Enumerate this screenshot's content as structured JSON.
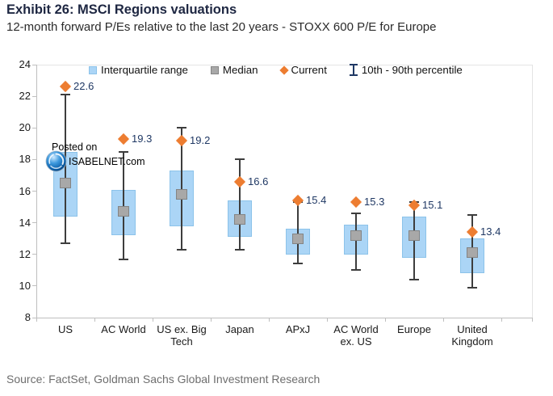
{
  "header": {
    "title": "Exhibit 26: MSCI Regions valuations",
    "subtitle": "12-month forward P/Es relative to the last 20 years - STOXX 600 P/E for Europe"
  },
  "footer": {
    "source": "Source: FactSet, Goldman Sachs Global Investment Research"
  },
  "watermark": {
    "line1": "Posted on",
    "line2": "ISABELNET.com",
    "logo_icon": "isabelnet-sphere-logo"
  },
  "chart_data": {
    "type": "boxplot",
    "title": "MSCI Regions valuations",
    "ylabel": "12-month forward P/E",
    "y_axis": {
      "min": 8,
      "max": 24,
      "step": 2,
      "ticks": [
        24,
        22,
        20,
        18,
        16,
        14,
        12,
        10,
        8
      ]
    },
    "grid": "top-line-only",
    "legend_position": "top",
    "legend": [
      {
        "label": "Interquartile range",
        "marker": "square",
        "color": "#abd5f6"
      },
      {
        "label": "Median",
        "marker": "square",
        "color": "#a8a8a8"
      },
      {
        "label": "Current",
        "marker": "diamond",
        "color": "#ed7d31"
      },
      {
        "label": "10th - 90th percentile",
        "marker": "error-bar",
        "color": "#1f3864"
      }
    ],
    "categories": [
      "US",
      "AC World",
      "US ex. Big Tech",
      "Japan",
      "APxJ",
      "AC World ex. US",
      "Europe",
      "United Kingdom"
    ],
    "series": [
      {
        "category": "US",
        "current": 22.6,
        "current_label": "22.6",
        "p90": 22.1,
        "q3": 18.5,
        "median": 16.5,
        "q1": 14.4,
        "p10": 12.7
      },
      {
        "category": "AC World",
        "current": 19.3,
        "current_label": "19.3",
        "p90": 18.5,
        "q3": 16.1,
        "median": 14.7,
        "q1": 13.2,
        "p10": 11.7
      },
      {
        "category": "US ex. Big Tech",
        "current": 19.2,
        "current_label": "19.2",
        "p90": 20.0,
        "q3": 17.3,
        "median": 15.8,
        "q1": 13.8,
        "p10": 12.3
      },
      {
        "category": "Japan",
        "current": 16.6,
        "current_label": "16.6",
        "p90": 18.0,
        "q3": 15.4,
        "median": 14.2,
        "q1": 13.1,
        "p10": 12.3
      },
      {
        "category": "APxJ",
        "current": 15.4,
        "current_label": "15.4",
        "p90": 15.3,
        "q3": 13.6,
        "median": 13.0,
        "q1": 12.0,
        "p10": 11.4
      },
      {
        "category": "AC World ex. US",
        "current": 15.3,
        "current_label": "15.3",
        "p90": 14.6,
        "q3": 13.9,
        "median": 13.2,
        "q1": 12.0,
        "p10": 11.0
      },
      {
        "category": "Europe",
        "current": 15.1,
        "current_label": "15.1",
        "p90": 15.3,
        "q3": 14.4,
        "median": 13.2,
        "q1": 11.8,
        "p10": 10.4
      },
      {
        "category": "United Kingdom",
        "current": 13.4,
        "current_label": "13.4",
        "p90": 14.5,
        "q3": 13.0,
        "median": 12.1,
        "q1": 10.8,
        "p10": 9.9
      }
    ],
    "colors": {
      "iqr_fill": "#abd5f6",
      "iqr_border": "#8cc3ea",
      "median_fill": "#a8a8a8",
      "median_border": "#848484",
      "current": "#ed7d31",
      "whisker": "#3d3d3d",
      "value_label": "#1f3864",
      "axis": "#bfbfbf",
      "grid": "#e4e4e4"
    }
  }
}
